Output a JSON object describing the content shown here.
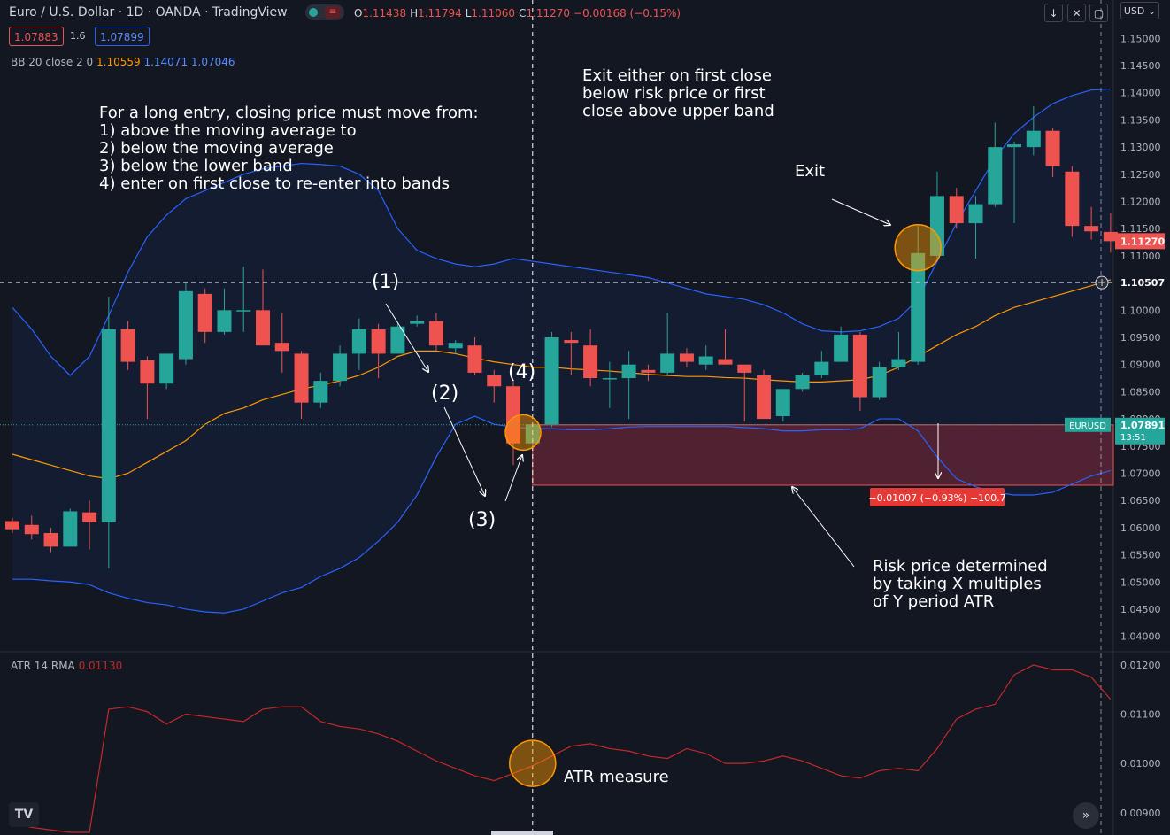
{
  "header": {
    "title": "Euro / U.S. Dollar · 1D · OANDA · TradingView",
    "ohlc": [
      {
        "k": "O",
        "v": "1.11438"
      },
      {
        "k": "H",
        "v": "1.11794"
      },
      {
        "k": "L",
        "v": "1.11060"
      },
      {
        "k": "C",
        "v": "1.11270"
      },
      {
        "k": "",
        "v": "−0.00168 (−0.15%)"
      }
    ],
    "sell_price": "1.07883",
    "spread": "1.6",
    "buy_price": "1.07899",
    "currency": "USD",
    "currency_arrow": "⌄"
  },
  "indicators": {
    "bb_name": "BB 20 close 2 0",
    "bb_basis": "1.10559",
    "bb_upper": "1.14071",
    "bb_lower": "1.07046",
    "atr_name": "ATR",
    "atr_params": "14 RMA",
    "atr_value": "0.01130"
  },
  "annotations": {
    "entry_rules": "For a long entry, closing price must move from:\n1) above the moving average to\n2) below the moving average\n3) below the lower band\n4) enter on first close to re-enter into bands",
    "exit_rules": "Exit either on first close\nbelow risk price or first\nclose above upper band",
    "exit_label": "Exit",
    "risk_text": "Risk price determined\nby taking X multiples\nof Y period ATR",
    "atr_measure": "ATR measure",
    "step1": "(1)",
    "step2": "(2)",
    "step3": "(3)",
    "step4": "(4)",
    "risk_measure": "−0.01007 (−0.93%) −100.7"
  },
  "price_axis": {
    "labels": [
      "1.15000",
      "1.14500",
      "1.14000",
      "1.13500",
      "1.13000",
      "1.12500",
      "1.12000",
      "1.11500",
      "1.11000",
      "1.10500",
      "1.10000",
      "1.09500",
      "1.09000",
      "1.08500",
      "1.08000",
      "1.07500",
      "1.07000",
      "1.06500",
      "1.06000",
      "1.05500",
      "1.05000",
      "1.04500",
      "1.04000"
    ],
    "last_price": "1.11270",
    "crosshair_price": "1.10507",
    "symbol_tag": "EURUSD",
    "symbol_price": "1.07891",
    "countdown": "13:51"
  },
  "atr_axis": {
    "labels": [
      "0.01200",
      "0.01100",
      "0.01000",
      "0.00900"
    ]
  },
  "colors": {
    "background": "#131722",
    "up": "#26a69a",
    "down": "#ef5350",
    "bb_band": "#2962ff",
    "bb_basis": "#ff9800",
    "atr_line": "#c62828",
    "risk_zone": "#5a2334",
    "highlight": "#ff9800"
  },
  "chart_data": [
    {
      "type": "candlestick",
      "title": "Euro / U.S. Dollar · 1D · OANDA",
      "ylim": [
        1.0375,
        1.1525
      ],
      "candles": [
        {
          "o": 1.0612,
          "h": 1.0618,
          "l": 1.059,
          "c": 1.0597
        },
        {
          "o": 1.0605,
          "h": 1.0622,
          "l": 1.0578,
          "c": 1.0588
        },
        {
          "o": 1.059,
          "h": 1.06,
          "l": 1.0555,
          "c": 1.0565
        },
        {
          "o": 1.0565,
          "h": 1.0635,
          "l": 1.0565,
          "c": 1.063
        },
        {
          "o": 1.0628,
          "h": 1.065,
          "l": 1.056,
          "c": 1.061
        },
        {
          "o": 1.061,
          "h": 1.1025,
          "l": 1.0525,
          "c": 1.0965
        },
        {
          "o": 1.0965,
          "h": 1.098,
          "l": 1.089,
          "c": 1.0905
        },
        {
          "o": 1.0908,
          "h": 1.0915,
          "l": 1.08,
          "c": 1.0865
        },
        {
          "o": 1.0865,
          "h": 1.092,
          "l": 1.0855,
          "c": 1.092
        },
        {
          "o": 1.091,
          "h": 1.105,
          "l": 1.09,
          "c": 1.1035
        },
        {
          "o": 1.103,
          "h": 1.104,
          "l": 1.094,
          "c": 1.096
        },
        {
          "o": 1.096,
          "h": 1.104,
          "l": 1.0955,
          "c": 1.1
        },
        {
          "o": 1.1,
          "h": 1.108,
          "l": 1.096,
          "c": 1.1
        },
        {
          "o": 1.1,
          "h": 1.1075,
          "l": 1.094,
          "c": 1.0935
        },
        {
          "o": 1.094,
          "h": 1.0995,
          "l": 1.0885,
          "c": 1.0925
        },
        {
          "o": 1.092,
          "h": 1.0925,
          "l": 1.08,
          "c": 1.083
        },
        {
          "o": 1.083,
          "h": 1.0885,
          "l": 1.082,
          "c": 1.087
        },
        {
          "o": 1.087,
          "h": 1.0935,
          "l": 1.086,
          "c": 1.092
        },
        {
          "o": 1.092,
          "h": 1.0985,
          "l": 1.089,
          "c": 1.0965
        },
        {
          "o": 1.0965,
          "h": 1.0975,
          "l": 1.0875,
          "c": 1.092
        },
        {
          "o": 1.092,
          "h": 1.0975,
          "l": 1.092,
          "c": 1.097
        },
        {
          "o": 1.0975,
          "h": 1.099,
          "l": 1.097,
          "c": 1.098
        },
        {
          "o": 1.098,
          "h": 1.0995,
          "l": 1.0925,
          "c": 1.0935
        },
        {
          "o": 1.093,
          "h": 1.0945,
          "l": 1.092,
          "c": 1.094
        },
        {
          "o": 1.0935,
          "h": 1.095,
          "l": 1.088,
          "c": 1.0885
        },
        {
          "o": 1.088,
          "h": 1.089,
          "l": 1.083,
          "c": 1.086
        },
        {
          "o": 1.086,
          "h": 1.087,
          "l": 1.0715,
          "c": 1.0755
        },
        {
          "o": 1.0755,
          "h": 1.079,
          "l": 1.0745,
          "c": 1.079
        },
        {
          "o": 1.079,
          "h": 1.096,
          "l": 1.0785,
          "c": 1.095
        },
        {
          "o": 1.0945,
          "h": 1.096,
          "l": 1.088,
          "c": 1.094
        },
        {
          "o": 1.0935,
          "h": 1.0965,
          "l": 1.086,
          "c": 1.0875
        },
        {
          "o": 1.0875,
          "h": 1.0905,
          "l": 1.082,
          "c": 1.0875
        },
        {
          "o": 1.0875,
          "h": 1.0925,
          "l": 1.08,
          "c": 1.09
        },
        {
          "o": 1.089,
          "h": 1.09,
          "l": 1.087,
          "c": 1.0885
        },
        {
          "o": 1.0885,
          "h": 1.0995,
          "l": 1.088,
          "c": 1.092
        },
        {
          "o": 1.092,
          "h": 1.093,
          "l": 1.0895,
          "c": 1.0905
        },
        {
          "o": 1.09,
          "h": 1.0935,
          "l": 1.089,
          "c": 1.0915
        },
        {
          "o": 1.091,
          "h": 1.0965,
          "l": 1.09,
          "c": 1.09
        },
        {
          "o": 1.09,
          "h": 1.09,
          "l": 1.0795,
          "c": 1.0885
        },
        {
          "o": 1.088,
          "h": 1.089,
          "l": 1.08,
          "c": 1.08
        },
        {
          "o": 1.0805,
          "h": 1.0855,
          "l": 1.0795,
          "c": 1.0855
        },
        {
          "o": 1.0855,
          "h": 1.0885,
          "l": 1.085,
          "c": 1.088
        },
        {
          "o": 1.088,
          "h": 1.0925,
          "l": 1.0875,
          "c": 1.0905
        },
        {
          "o": 1.0905,
          "h": 1.097,
          "l": 1.0905,
          "c": 1.0955
        },
        {
          "o": 1.0955,
          "h": 1.096,
          "l": 1.0815,
          "c": 1.084
        },
        {
          "o": 1.084,
          "h": 1.0905,
          "l": 1.0835,
          "c": 1.0895
        },
        {
          "o": 1.0895,
          "h": 1.096,
          "l": 1.089,
          "c": 1.091
        },
        {
          "o": 1.0905,
          "h": 1.1155,
          "l": 1.09,
          "c": 1.1105
        },
        {
          "o": 1.11,
          "h": 1.1255,
          "l": 1.1095,
          "c": 1.121
        },
        {
          "o": 1.121,
          "h": 1.1225,
          "l": 1.115,
          "c": 1.116
        },
        {
          "o": 1.116,
          "h": 1.121,
          "l": 1.1095,
          "c": 1.1195
        },
        {
          "o": 1.1195,
          "h": 1.1345,
          "l": 1.119,
          "c": 1.13
        },
        {
          "o": 1.13,
          "h": 1.131,
          "l": 1.116,
          "c": 1.1305
        },
        {
          "o": 1.13,
          "h": 1.1375,
          "l": 1.1285,
          "c": 1.133
        },
        {
          "o": 1.133,
          "h": 1.1335,
          "l": 1.1245,
          "c": 1.1265
        },
        {
          "o": 1.1255,
          "h": 1.1265,
          "l": 1.1135,
          "c": 1.1155
        },
        {
          "o": 1.1155,
          "h": 1.119,
          "l": 1.113,
          "c": 1.1145
        },
        {
          "o": 1.1144,
          "h": 1.1179,
          "l": 1.1106,
          "c": 1.1127
        }
      ],
      "bb_upper": [
        1.1005,
        1.0965,
        1.0915,
        1.088,
        1.0915,
        1.099,
        1.107,
        1.1135,
        1.1175,
        1.1205,
        1.122,
        1.1235,
        1.125,
        1.126,
        1.1265,
        1.127,
        1.1268,
        1.1265,
        1.125,
        1.122,
        1.115,
        1.111,
        1.1095,
        1.1085,
        1.108,
        1.1085,
        1.1095,
        1.109,
        1.1085,
        1.108,
        1.1075,
        1.107,
        1.1065,
        1.106,
        1.105,
        1.104,
        1.103,
        1.1025,
        1.102,
        1.101,
        1.0995,
        1.0975,
        1.0962,
        1.096,
        1.0962,
        1.097,
        1.0985,
        1.102,
        1.109,
        1.116,
        1.122,
        1.128,
        1.1325,
        1.1355,
        1.138,
        1.1395,
        1.1405,
        1.1407
      ],
      "bb_basis": [
        1.0735,
        1.0725,
        1.0715,
        1.0705,
        1.0695,
        1.069,
        1.07,
        1.072,
        1.074,
        1.076,
        1.079,
        1.081,
        1.082,
        1.0835,
        1.0845,
        1.0855,
        1.0862,
        1.087,
        1.088,
        1.0895,
        1.0915,
        1.0925,
        1.0925,
        1.092,
        1.0912,
        1.0905,
        1.09,
        1.0895,
        1.0895,
        1.0892,
        1.089,
        1.0888,
        1.0885,
        1.0882,
        1.088,
        1.0878,
        1.0878,
        1.0876,
        1.0875,
        1.0872,
        1.087,
        1.0868,
        1.0868,
        1.087,
        1.0872,
        1.088,
        1.0895,
        1.0915,
        1.0935,
        1.0955,
        1.097,
        1.099,
        1.1005,
        1.1015,
        1.1025,
        1.1035,
        1.1045,
        1.1056
      ],
      "bb_lower": [
        1.0505,
        1.0505,
        1.0502,
        1.05,
        1.0495,
        1.048,
        1.047,
        1.0462,
        1.0458,
        1.045,
        1.0445,
        1.0443,
        1.045,
        1.0465,
        1.048,
        1.049,
        1.051,
        1.0525,
        1.0545,
        1.0575,
        1.061,
        1.066,
        1.073,
        1.079,
        1.0805,
        1.079,
        1.0785,
        1.0782,
        1.0782,
        1.078,
        1.078,
        1.0782,
        1.0785,
        1.0786,
        1.0786,
        1.0786,
        1.0786,
        1.0786,
        1.0784,
        1.0782,
        1.0778,
        1.0778,
        1.078,
        1.078,
        1.0782,
        1.08,
        1.08,
        1.0778,
        1.073,
        1.069,
        1.0675,
        1.0665,
        1.066,
        1.066,
        1.0665,
        1.068,
        1.0695,
        1.0705
      ],
      "risk_zone": {
        "top": 1.07891,
        "bottom": 1.0678,
        "from_candle": 27
      },
      "crosshair": {
        "candle": 27,
        "price": 1.10507
      },
      "current_price": 1.07891,
      "last_close": 1.1127
    },
    {
      "type": "line",
      "title": "ATR 14 RMA",
      "ylim": [
        0.0086,
        0.01225
      ],
      "values": [
        0.0088,
        0.0087,
        0.00865,
        0.0086,
        0.0086,
        0.0111,
        0.01115,
        0.01105,
        0.0108,
        0.011,
        0.01095,
        0.0109,
        0.01085,
        0.0111,
        0.01115,
        0.01115,
        0.01085,
        0.01075,
        0.0107,
        0.0106,
        0.01045,
        0.01025,
        0.01005,
        0.0099,
        0.00975,
        0.00965,
        0.0098,
        0.00995,
        0.01015,
        0.01035,
        0.0104,
        0.0103,
        0.01025,
        0.01015,
        0.0101,
        0.0103,
        0.0102,
        0.01,
        0.01,
        0.01005,
        0.01015,
        0.01005,
        0.0099,
        0.00975,
        0.0097,
        0.00985,
        0.0099,
        0.00985,
        0.0103,
        0.0109,
        0.0111,
        0.0112,
        0.0118,
        0.012,
        0.0119,
        0.0119,
        0.01175,
        0.0113
      ]
    }
  ]
}
